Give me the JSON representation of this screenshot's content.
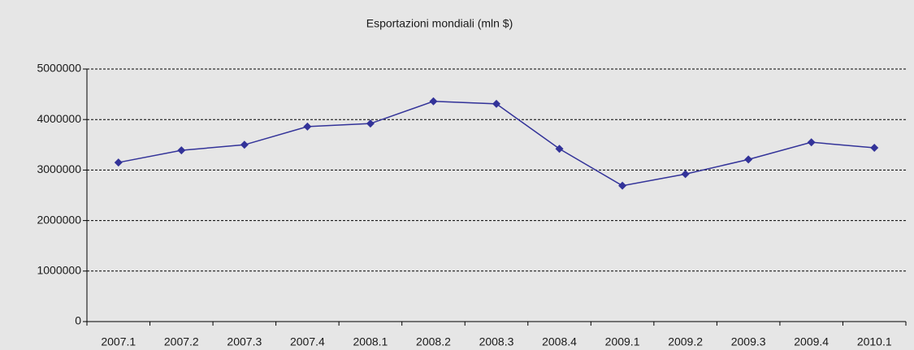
{
  "chart_data": {
    "type": "line",
    "title": "Esportazioni mondiali (mln $)",
    "categories": [
      "2007.1",
      "2007.2",
      "2007.3",
      "2007.4",
      "2008.1",
      "2008.2",
      "2008.3",
      "2008.4",
      "2009.1",
      "2009.2",
      "2009.3",
      "2009.4",
      "2010.1"
    ],
    "values": [
      3150000,
      3390000,
      3500000,
      3860000,
      3920000,
      4360000,
      4310000,
      3420000,
      2690000,
      2920000,
      3210000,
      3550000,
      3440000
    ],
    "color": "#333399",
    "ylim": [
      0,
      5000000
    ],
    "yticks": [
      0,
      1000000,
      2000000,
      3000000,
      4000000,
      5000000
    ],
    "grid": true
  }
}
